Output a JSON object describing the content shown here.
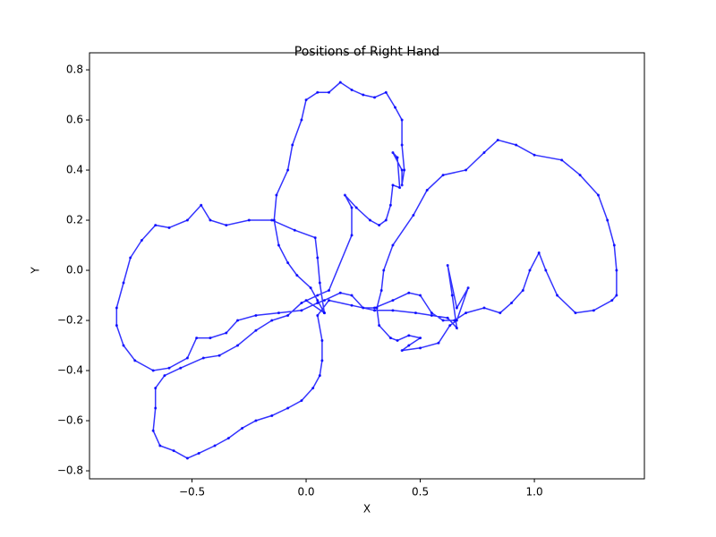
{
  "chart_data": {
    "type": "line",
    "title": "Positions of Right Hand",
    "xlabel": "X",
    "ylabel": "Y",
    "color": "#0000ff",
    "marker": true,
    "xlim": [
      -0.949,
      1.482
    ],
    "ylim": [
      -0.832,
      0.868
    ],
    "xticks": [
      {
        "value": -0.5,
        "label": "−0.5"
      },
      {
        "value": 0.0,
        "label": "0.0"
      },
      0.5,
      {
        "value": 1.0,
        "label": "1.0"
      }
    ],
    "yticks": [
      {
        "value": -0.8,
        "label": "−0.8"
      },
      {
        "value": -0.6,
        "label": "−0.6"
      },
      {
        "value": -0.4,
        "label": "−0.4"
      },
      {
        "value": -0.2,
        "label": "−0.2"
      },
      {
        "value": 0.0,
        "label": "0.0"
      },
      0.2,
      0.4,
      0.6,
      0.8
    ],
    "x": [
      0.0,
      0.08,
      0.06,
      0.05,
      0.04,
      -0.05,
      -0.15,
      -0.25,
      -0.35,
      -0.42,
      -0.46,
      -0.52,
      -0.6,
      -0.66,
      -0.72,
      -0.77,
      -0.8,
      -0.83,
      -0.83,
      -0.8,
      -0.75,
      -0.67,
      -0.6,
      -0.52,
      -0.48,
      -0.42,
      -0.35,
      -0.3,
      -0.22,
      -0.12,
      -0.02,
      0.05,
      0.08,
      0.15,
      0.2,
      0.25,
      0.3,
      0.38,
      0.45,
      0.5,
      0.55,
      0.6,
      0.65,
      0.7,
      0.78,
      0.85,
      0.9,
      0.95,
      0.98,
      1.02,
      1.05,
      1.1,
      1.18,
      1.26,
      1.34,
      1.36,
      1.36,
      1.35,
      1.32,
      1.28,
      1.2,
      1.12,
      1.0,
      0.92,
      0.84,
      0.78,
      0.7,
      0.6,
      0.53,
      0.47,
      0.38,
      0.34,
      0.33,
      0.31,
      0.32,
      0.37,
      0.4,
      0.45,
      0.5,
      0.45,
      0.42,
      0.5,
      0.58,
      0.63,
      0.66,
      0.71,
      0.66,
      0.62,
      0.64,
      0.66,
      0.62,
      0.55,
      0.48,
      0.38,
      0.3,
      0.2,
      0.1,
      0.05,
      0.07,
      0.07,
      0.06,
      0.03,
      -0.02,
      -0.08,
      -0.15,
      -0.22,
      -0.28,
      -0.34,
      -0.4,
      -0.47,
      -0.52,
      -0.58,
      -0.64,
      -0.67,
      -0.66,
      -0.66,
      -0.62,
      -0.55,
      -0.45,
      -0.38,
      -0.3,
      -0.22,
      -0.15,
      -0.08,
      -0.02,
      0.05,
      0.1,
      0.2,
      0.2,
      0.17,
      0.22,
      0.28,
      0.32,
      0.35,
      0.37,
      0.38,
      0.41,
      0.4,
      0.38,
      0.42,
      0.42,
      0.43,
      0.42,
      0.42,
      0.39,
      0.35,
      0.3,
      0.25,
      0.2,
      0.15,
      0.1,
      0.05,
      0.0,
      -0.02,
      -0.06,
      -0.08,
      -0.13,
      -0.14,
      -0.12,
      -0.08,
      -0.04,
      0.02,
      0.05,
      0.08
    ],
    "y": [
      -0.12,
      -0.17,
      -0.05,
      0.05,
      0.13,
      0.16,
      0.2,
      0.2,
      0.18,
      0.2,
      0.26,
      0.2,
      0.17,
      0.18,
      0.12,
      0.05,
      -0.05,
      -0.15,
      -0.22,
      -0.3,
      -0.36,
      -0.4,
      -0.39,
      -0.35,
      -0.27,
      -0.27,
      -0.25,
      -0.2,
      -0.18,
      -0.17,
      -0.16,
      -0.13,
      -0.12,
      -0.09,
      -0.1,
      -0.15,
      -0.15,
      -0.12,
      -0.09,
      -0.1,
      -0.17,
      -0.2,
      -0.2,
      -0.17,
      -0.15,
      -0.17,
      -0.13,
      -0.08,
      0.0,
      0.07,
      0.0,
      -0.1,
      -0.17,
      -0.16,
      -0.12,
      -0.1,
      0.0,
      0.1,
      0.2,
      0.3,
      0.38,
      0.44,
      0.46,
      0.5,
      0.52,
      0.47,
      0.4,
      0.38,
      0.32,
      0.22,
      0.1,
      0.0,
      -0.08,
      -0.15,
      -0.22,
      -0.27,
      -0.28,
      -0.26,
      -0.27,
      -0.3,
      -0.32,
      -0.31,
      -0.29,
      -0.22,
      -0.2,
      -0.07,
      -0.15,
      0.02,
      -0.1,
      -0.23,
      -0.19,
      -0.18,
      -0.17,
      -0.16,
      -0.16,
      -0.14,
      -0.12,
      -0.18,
      -0.28,
      -0.36,
      -0.42,
      -0.47,
      -0.52,
      -0.55,
      -0.58,
      -0.6,
      -0.63,
      -0.67,
      -0.7,
      -0.73,
      -0.75,
      -0.72,
      -0.7,
      -0.64,
      -0.55,
      -0.47,
      -0.42,
      -0.39,
      -0.35,
      -0.34,
      -0.3,
      -0.24,
      -0.2,
      -0.18,
      -0.13,
      -0.1,
      -0.08,
      0.14,
      0.25,
      0.3,
      0.25,
      0.2,
      0.18,
      0.2,
      0.26,
      0.34,
      0.33,
      0.45,
      0.47,
      0.4,
      0.34,
      0.4,
      0.5,
      0.6,
      0.65,
      0.71,
      0.69,
      0.7,
      0.72,
      0.75,
      0.71,
      0.71,
      0.68,
      0.6,
      0.5,
      0.4,
      0.3,
      0.2,
      0.1,
      0.03,
      -0.02,
      -0.07,
      -0.12,
      -0.17
    ]
  }
}
